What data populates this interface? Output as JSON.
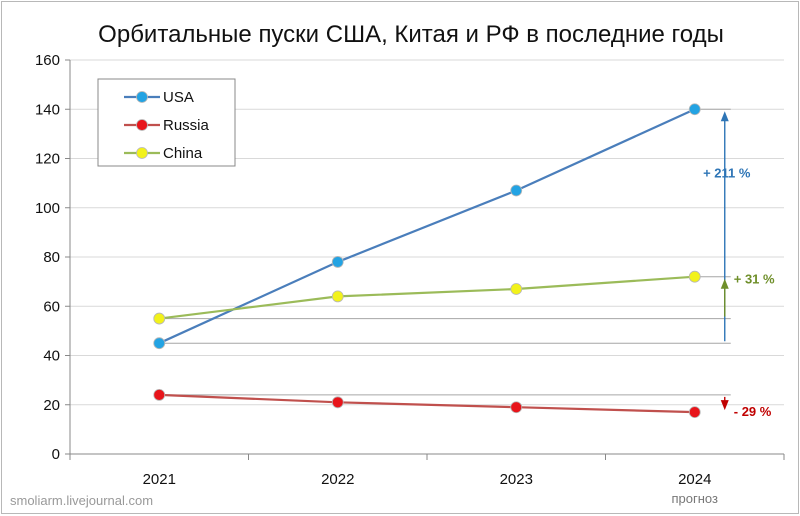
{
  "colors": {
    "usa": "#4a7ebb",
    "usa_marker": "#23a3e3",
    "russia": "#c0504d",
    "russia_marker": "#e8141a",
    "china": "#9bbb59",
    "china_marker": "#f2f21a",
    "usa_annotation": "#2e75b6",
    "russia_annotation": "#c00000",
    "china_annotation": "#6f8f2a"
  },
  "watermark": "smoliarm.livejournal.com",
  "chart_data": {
    "type": "line",
    "title": "Орбитальные пуски  США, Китая и РФ в последние годы",
    "xlabel": "",
    "ylabel": "",
    "categories": [
      "2021",
      "2022",
      "2023",
      "2024"
    ],
    "category_sublabels": [
      "",
      "",
      "",
      "прогноз"
    ],
    "ylim": [
      0,
      160
    ],
    "yticks": [
      0,
      20,
      40,
      60,
      80,
      100,
      120,
      140,
      160
    ],
    "grid": true,
    "legend_position": "top-left",
    "series": [
      {
        "name": "USA",
        "values": [
          45,
          78,
          107,
          140
        ]
      },
      {
        "name": "Russia",
        "values": [
          24,
          21,
          19,
          17
        ]
      },
      {
        "name": "China",
        "values": [
          55,
          64,
          67,
          72
        ]
      }
    ],
    "annotations": [
      {
        "series": "USA",
        "text": "+ 211 %"
      },
      {
        "series": "China",
        "text": "+ 31 %"
      },
      {
        "series": "Russia",
        "text": "- 29 %"
      }
    ]
  }
}
